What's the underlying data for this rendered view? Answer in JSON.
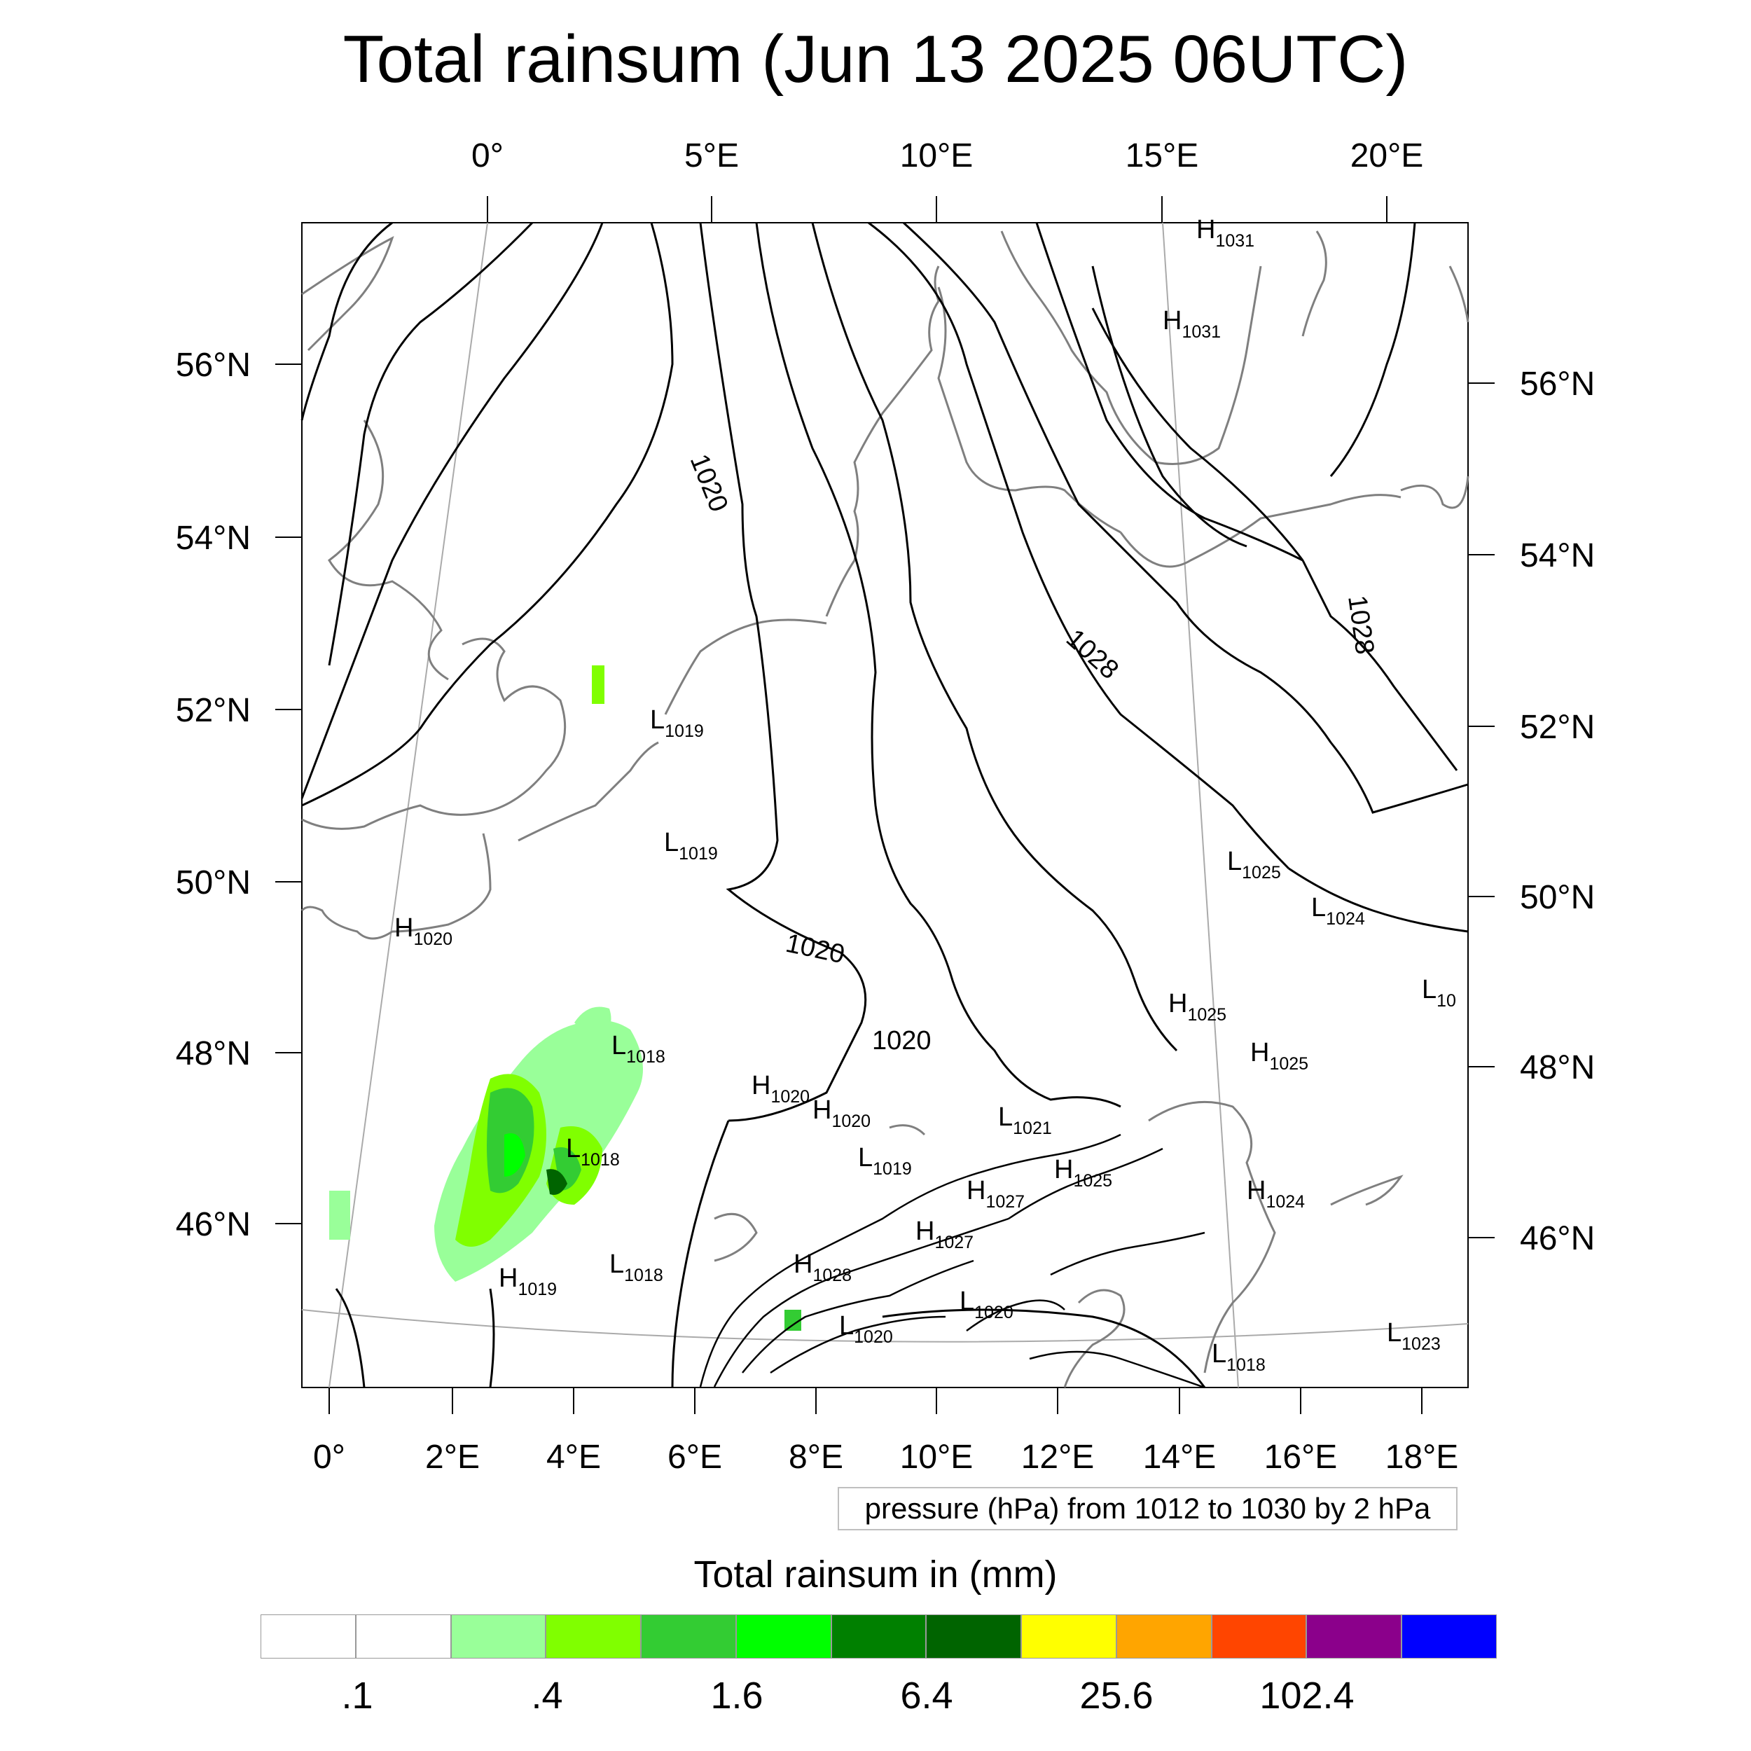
{
  "title": "Total rainsum (Jun 13 2025 06UTC)",
  "info_box": "pressure (hPa) from 1012 to 1030 by 2 hPa",
  "colorbar": {
    "title": "Total rainsum in (mm)",
    "colors": [
      "#ffffff",
      "#ffffff",
      "#99ff99",
      "#80ff00",
      "#33cc33",
      "#00ff00",
      "#008000",
      "#006400",
      "#ffff00",
      "#ffa500",
      "#ff4500",
      "#8b008b",
      "#0000ff"
    ],
    "labels": [
      ".1",
      ".4",
      "1.6",
      "6.4",
      "25.6",
      "102.4"
    ]
  },
  "axes": {
    "top_lon": [
      "0°",
      "5°E",
      "10°E",
      "15°E",
      "20°E"
    ],
    "bottom_lon": [
      "0°",
      "2°E",
      "4°E",
      "6°E",
      "8°E",
      "10°E",
      "12°E",
      "14°E",
      "16°E",
      "18°E"
    ],
    "left_lat": [
      "56°N",
      "54°N",
      "52°N",
      "50°N",
      "48°N",
      "46°N"
    ],
    "right_lat": [
      "56°N",
      "54°N",
      "52°N",
      "50°N",
      "48°N",
      "46°N"
    ]
  },
  "isobar_labels": [
    "1020",
    "1020",
    "1020",
    "1028",
    "1028"
  ],
  "pressure_centers": [
    {
      "type": "H",
      "value": "1031"
    },
    {
      "type": "H",
      "value": "1031"
    },
    {
      "type": "L",
      "value": "1019"
    },
    {
      "type": "L",
      "value": "1019"
    },
    {
      "type": "H",
      "value": "1020"
    },
    {
      "type": "L",
      "value": "1025"
    },
    {
      "type": "L",
      "value": "1024"
    },
    {
      "type": "H",
      "value": "1025"
    },
    {
      "type": "H",
      "value": "1025"
    },
    {
      "type": "L",
      "value": "10"
    },
    {
      "type": "L",
      "value": "1018"
    },
    {
      "type": "H",
      "value": "1020"
    },
    {
      "type": "H",
      "value": "1020"
    },
    {
      "type": "L",
      "value": "1021"
    },
    {
      "type": "L",
      "value": "1018"
    },
    {
      "type": "L",
      "value": "1019"
    },
    {
      "type": "H",
      "value": "1025"
    },
    {
      "type": "H",
      "value": "1027"
    },
    {
      "type": "H",
      "value": "1024"
    },
    {
      "type": "H",
      "value": "1027"
    },
    {
      "type": "H",
      "value": "1019"
    },
    {
      "type": "L",
      "value": "1018"
    },
    {
      "type": "H",
      "value": "1028"
    },
    {
      "type": "L",
      "value": "1020"
    },
    {
      "type": "L",
      "value": "1020"
    },
    {
      "type": "L",
      "value": "1023"
    },
    {
      "type": "L",
      "value": "1018"
    }
  ]
}
